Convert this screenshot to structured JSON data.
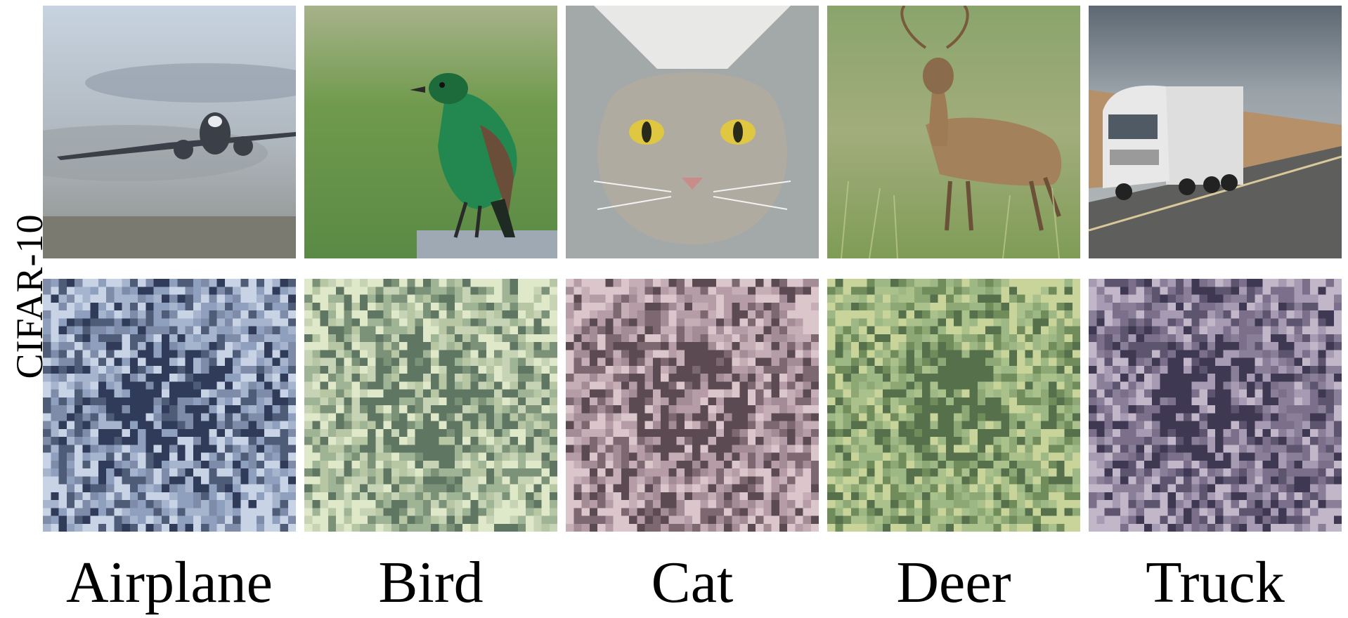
{
  "row_label": "CIFAR-10",
  "classes": [
    {
      "label": "Airplane",
      "palette": [
        "#7e8ca9",
        "#a7b4cd",
        "#4e5c78",
        "#c9d3e6",
        "#2f3b58",
        "#8fa0bf"
      ]
    },
    {
      "label": "Bird",
      "palette": [
        "#9fb395",
        "#c6d4b5",
        "#7b9278",
        "#dfe8c8",
        "#5f7663",
        "#b7c7a3"
      ]
    },
    {
      "label": "Cat",
      "palette": [
        "#a48c96",
        "#c6aeb7",
        "#7d6872",
        "#dbc6cc",
        "#5c4a52",
        "#b69ca6"
      ]
    },
    {
      "label": "Deer",
      "palette": [
        "#8da874",
        "#aac18c",
        "#6f8c5a",
        "#c8d49a",
        "#55704a",
        "#9db884"
      ]
    },
    {
      "label": "Truck",
      "palette": [
        "#8a7f98",
        "#a69bb3",
        "#5d5470",
        "#c2b6c9",
        "#3f3852",
        "#7b6f8c"
      ]
    }
  ]
}
